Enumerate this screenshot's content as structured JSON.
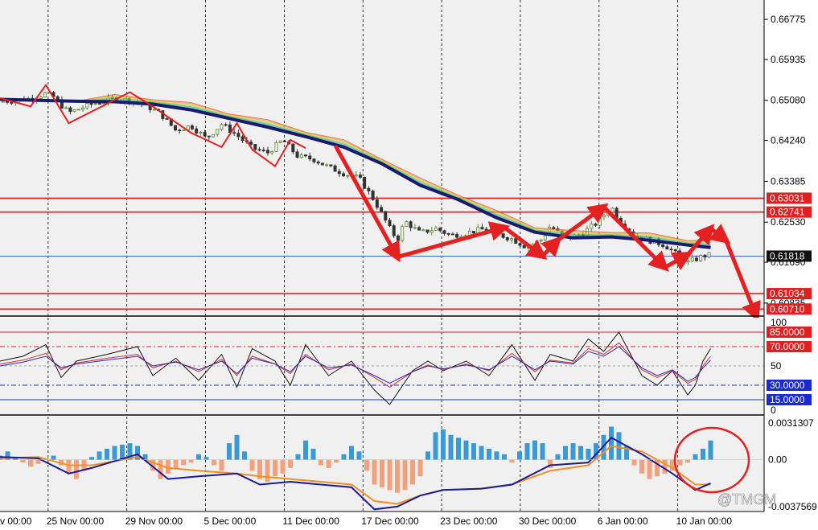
{
  "colors": {
    "background": "#ffffff",
    "plot_bg": "#f0f0f0",
    "grid": "#000000",
    "bull_candle": "#5a8a3a",
    "bear_candle": "#333333",
    "ma_slow": "#1a1a6a",
    "level_line": "#e52020",
    "current_price_line": "#3a66d0",
    "arrow": "#e52020",
    "macd_pos": "#3a9ad8",
    "macd_neg": "#f4a07c",
    "macd_line": "#1a1a9a",
    "signal_line": "#f0901a",
    "rsi_fast": "#111111",
    "rsi_mid": "#d03030",
    "rsi_slow": "#2a2ab0",
    "label_red_bg": "#e02020",
    "label_blue_bg": "#1a2ad0",
    "label_black_bg": "#111111"
  },
  "watermark": "@TMGM",
  "x_axis": {
    "labels": [
      "v 00:00",
      "25 Nov 00:00",
      "29 Nov 00:00",
      "5 Dec 00:00",
      "11 Dec 00:00",
      "17 Dec 00:00",
      "23 Dec 00:00",
      "30 Dec 00:00",
      "6 Jan 00:00",
      "10 Jan 00:00"
    ],
    "range": [
      0,
      100
    ]
  },
  "chart_data": [
    {
      "type": "line",
      "title": "",
      "ylim": [
        0.6058,
        0.6718
      ],
      "y_ticks": [
        "0.66775",
        "0.65935",
        "0.65080",
        "0.64240",
        "0.63385",
        "0.62530",
        "0.61690",
        "0.60835"
      ],
      "tick_values": [
        0.66775,
        0.65935,
        0.6508,
        0.6424,
        0.63385,
        0.6253,
        0.6169,
        0.60835
      ],
      "price_series": {
        "x": [
          0,
          4,
          6,
          7,
          9,
          12,
          15,
          17,
          19,
          21,
          23,
          25,
          27,
          29,
          31,
          33,
          35,
          37,
          39,
          41,
          43,
          45,
          47,
          49,
          51,
          52,
          53,
          55,
          57,
          59,
          61,
          63,
          65,
          67,
          69,
          71,
          72,
          74,
          76,
          78,
          80,
          81,
          83,
          85,
          87,
          89,
          90,
          91,
          92,
          93
        ],
        "close": [
          0.6505,
          0.6512,
          0.6522,
          0.6515,
          0.6482,
          0.65,
          0.6512,
          0.6508,
          0.6498,
          0.648,
          0.6445,
          0.6455,
          0.6428,
          0.6458,
          0.6435,
          0.6408,
          0.6398,
          0.6425,
          0.639,
          0.6385,
          0.6368,
          0.6355,
          0.6345,
          0.6298,
          0.624,
          0.6215,
          0.6255,
          0.623,
          0.624,
          0.6225,
          0.623,
          0.6238,
          0.6228,
          0.6218,
          0.62,
          0.6218,
          0.6245,
          0.6218,
          0.6228,
          0.625,
          0.6285,
          0.6258,
          0.6225,
          0.6215,
          0.6205,
          0.618,
          0.6168,
          0.6175,
          0.6182,
          0.6185
        ]
      },
      "ma_slow": {
        "x": [
          0,
          5,
          10,
          15,
          20,
          25,
          30,
          35,
          40,
          45,
          50,
          55,
          60,
          65,
          70,
          75,
          80,
          85,
          90,
          93
        ],
        "values": [
          0.651,
          0.6508,
          0.6506,
          0.6505,
          0.65,
          0.6488,
          0.647,
          0.6452,
          0.6432,
          0.641,
          0.6375,
          0.633,
          0.63,
          0.6262,
          0.6232,
          0.622,
          0.6222,
          0.6215,
          0.6205,
          0.62
        ]
      },
      "swing_zigzag": {
        "x": [
          0,
          4,
          6,
          9,
          17,
          20,
          25,
          29,
          31,
          33,
          36,
          38,
          40
        ],
        "values": [
          0.6513,
          0.6495,
          0.654,
          0.646,
          0.6525,
          0.6495,
          0.644,
          0.641,
          0.646,
          0.6405,
          0.637,
          0.6425,
          0.6408
        ]
      },
      "forecast_arrows": [
        {
          "x": [
            44,
            52,
            66
          ],
          "values": [
            0.641,
            0.618,
            0.6242
          ]
        },
        {
          "x": [
            66,
            71,
            73,
            79,
            87
          ],
          "values": [
            0.6242,
            0.6182,
            0.6215,
            0.6285,
            0.6158
          ]
        },
        {
          "x": [
            87,
            90,
            93,
            95,
            99
          ],
          "values": [
            0.6158,
            0.6185,
            0.624,
            0.6215,
            0.6055
          ]
        }
      ],
      "levels": [
        {
          "value": 0.63031,
          "label": "0.63031",
          "style": "red"
        },
        {
          "value": 0.62741,
          "label": "0.62741",
          "style": "red"
        },
        {
          "value": 0.61818,
          "label": "0.61818",
          "style": "black"
        },
        {
          "value": 0.61034,
          "label": "0.61034",
          "style": "red"
        },
        {
          "value": 0.6071,
          "label": "0.60710",
          "style": "red"
        }
      ]
    },
    {
      "type": "line",
      "title": "",
      "ylim": [
        0,
        100
      ],
      "y_ticks": [
        "100",
        "50",
        "0"
      ],
      "tick_values": [
        100,
        50,
        0
      ],
      "levels": [
        {
          "value": 85,
          "label": "85.0000",
          "style": "red"
        },
        {
          "value": 70,
          "label": "70.0000",
          "style": "red"
        },
        {
          "value": 30,
          "label": "30.0000",
          "style": "blue"
        },
        {
          "value": 15,
          "label": "15.0000",
          "style": "blue"
        }
      ],
      "series": [
        {
          "x": [
            0,
            3,
            6,
            8,
            10,
            14,
            18,
            20,
            23,
            26,
            29,
            31,
            33,
            36,
            38,
            40,
            43,
            46,
            49,
            51,
            54,
            56,
            58,
            61,
            64,
            67,
            70,
            72,
            75,
            77,
            79,
            81,
            84,
            86,
            88,
            90,
            91,
            92,
            93
          ],
          "values": [
            55,
            60,
            72,
            38,
            55,
            62,
            70,
            40,
            58,
            35,
            62,
            28,
            68,
            55,
            30,
            72,
            40,
            55,
            25,
            10,
            45,
            55,
            45,
            55,
            40,
            72,
            35,
            62,
            55,
            78,
            65,
            85,
            40,
            30,
            45,
            20,
            30,
            55,
            68
          ]
        },
        {
          "x": [
            0,
            3,
            6,
            8,
            10,
            14,
            18,
            20,
            23,
            26,
            29,
            31,
            33,
            36,
            38,
            40,
            43,
            46,
            49,
            51,
            54,
            56,
            58,
            61,
            64,
            67,
            70,
            72,
            75,
            77,
            79,
            81,
            84,
            86,
            88,
            90,
            91,
            92,
            93
          ],
          "values": [
            52,
            56,
            63,
            46,
            53,
            58,
            62,
            48,
            55,
            44,
            57,
            40,
            60,
            52,
            42,
            62,
            46,
            52,
            38,
            28,
            44,
            51,
            46,
            52,
            45,
            63,
            44,
            56,
            53,
            68,
            62,
            74,
            46,
            38,
            45,
            32,
            36,
            50,
            60
          ]
        },
        {
          "x": [
            0,
            3,
            6,
            8,
            10,
            14,
            18,
            20,
            23,
            26,
            29,
            31,
            33,
            36,
            38,
            40,
            43,
            46,
            49,
            51,
            54,
            56,
            58,
            61,
            64,
            67,
            70,
            72,
            75,
            77,
            79,
            81,
            84,
            86,
            88,
            90,
            91,
            92,
            93
          ],
          "values": [
            50,
            54,
            60,
            48,
            52,
            56,
            60,
            50,
            54,
            46,
            55,
            42,
            58,
            52,
            44,
            60,
            48,
            51,
            40,
            32,
            44,
            50,
            47,
            51,
            46,
            60,
            46,
            55,
            52,
            65,
            60,
            70,
            48,
            40,
            46,
            34,
            38,
            48,
            56
          ]
        }
      ]
    },
    {
      "type": "bar",
      "title": "",
      "ylim": [
        -0.0037569,
        0.0031307
      ],
      "y_ticks": [
        "0.0031307",
        "0.00",
        "-0.0037569"
      ],
      "tick_values": [
        0.0031307,
        0,
        -0.0037569
      ],
      "histogram": {
        "x": [
          0,
          1,
          2,
          3,
          4,
          5,
          6,
          7,
          8,
          9,
          10,
          11,
          12,
          13,
          14,
          15,
          16,
          17,
          18,
          19,
          20,
          21,
          22,
          23,
          24,
          25,
          26,
          27,
          28,
          29,
          30,
          31,
          32,
          33,
          34,
          35,
          36,
          37,
          38,
          39,
          40,
          41,
          42,
          43,
          44,
          45,
          46,
          47,
          48,
          49,
          50,
          51,
          52,
          53,
          54,
          55,
          56,
          57,
          58,
          59,
          60,
          61,
          62,
          63,
          64,
          65,
          66,
          67,
          68,
          69,
          70,
          71,
          72,
          73,
          74,
          75,
          76,
          77,
          78,
          79,
          80,
          81,
          82,
          83,
          84,
          85,
          86,
          87,
          88,
          89,
          90,
          91,
          92,
          93
        ],
        "values": [
          0.0003,
          0.0006,
          0.0002,
          -0.0002,
          -0.0005,
          -0.0003,
          0.0001,
          0.0003,
          -0.0004,
          -0.001,
          -0.0014,
          -0.0008,
          0.0002,
          0.0006,
          0.0008,
          0.001,
          0.0011,
          0.0012,
          0.001,
          0.0004,
          -0.0008,
          -0.0014,
          -0.001,
          -0.0006,
          -0.0004,
          -0.0002,
          0.0004,
          0.0002,
          -0.0004,
          -0.0008,
          0.0012,
          0.0018,
          0.0006,
          -0.0008,
          -0.0014,
          -0.0016,
          -0.0012,
          -0.001,
          -0.0006,
          0.0004,
          0.0014,
          0.0008,
          -0.0004,
          -0.0006,
          -0.0002,
          0.0004,
          0.001,
          0.0006,
          -0.0008,
          -0.0018,
          -0.002,
          -0.0022,
          -0.0024,
          -0.0022,
          -0.0018,
          -0.0012,
          0.0006,
          0.002,
          0.0022,
          0.0018,
          0.0016,
          0.0014,
          0.0012,
          0.001,
          0.0008,
          0.0006,
          0.0004,
          -0.0002,
          0.0006,
          0.0012,
          0.0014,
          0.0012,
          -0.0006,
          0.0004,
          0.001,
          0.0012,
          0.001,
          0.0008,
          0.0012,
          0.0018,
          0.0024,
          0.002,
          0.001,
          -0.0004,
          -0.001,
          -0.0014,
          -0.0012,
          -0.001,
          -0.0008,
          -0.0004,
          -0.0002,
          0.0004,
          0.0008,
          0.0014
        ]
      },
      "series": [
        {
          "x": [
            0,
            5,
            9,
            12,
            18,
            22,
            26,
            31,
            34,
            38,
            42,
            46,
            49,
            52,
            55,
            58,
            63,
            67,
            72,
            77,
            80,
            84,
            88,
            91,
            93
          ],
          "values": [
            0.0002,
            0.0001,
            -0.001,
            -0.0006,
            0.0004,
            -0.0014,
            -0.0012,
            -0.001,
            -0.0018,
            -0.0016,
            -0.0018,
            -0.002,
            -0.0036,
            -0.0034,
            -0.0026,
            -0.0022,
            -0.0021,
            -0.0018,
            -0.0004,
            -0.0002,
            0.0016,
            0.0004,
            -0.001,
            -0.0022,
            -0.0017
          ]
        },
        {
          "x": [
            0,
            5,
            9,
            12,
            18,
            22,
            26,
            31,
            34,
            38,
            42,
            46,
            49,
            52,
            55,
            58,
            63,
            67,
            72,
            77,
            80,
            84,
            88,
            91,
            93
          ],
          "values": [
            0.0001,
            0.0002,
            -0.0004,
            -0.0004,
            0.0002,
            -0.0006,
            -0.0008,
            -0.001,
            -0.0012,
            -0.0014,
            -0.0016,
            -0.0018,
            -0.003,
            -0.0032,
            -0.0026,
            -0.0022,
            -0.0021,
            -0.0018,
            -0.0008,
            -0.0004,
            0.001,
            0.0006,
            -0.0006,
            -0.0018,
            -0.0018
          ]
        }
      ]
    }
  ]
}
